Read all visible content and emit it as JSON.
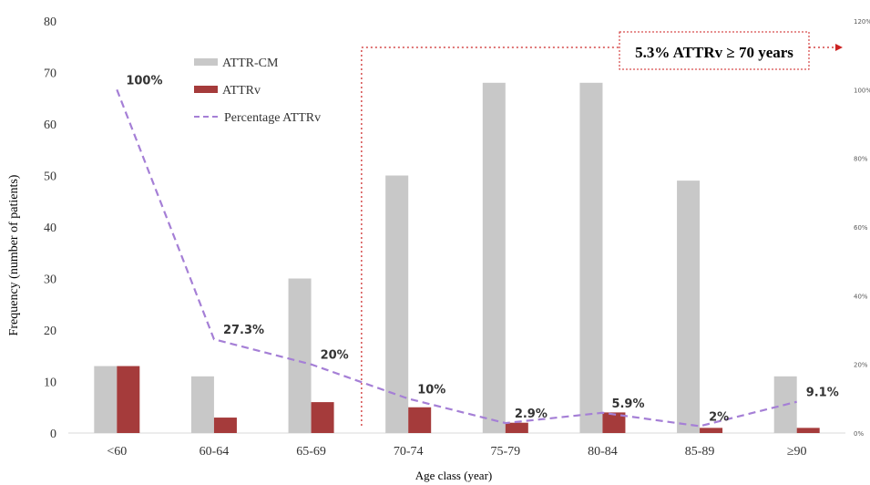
{
  "chart_data": {
    "type": "bar",
    "categories": [
      "<60",
      "60-64",
      "65-69",
      "70-74",
      "75-79",
      "80-84",
      "85-89",
      "≥90"
    ],
    "series": [
      {
        "name": "ATTR-CM",
        "type": "bar",
        "values": [
          13,
          11,
          30,
          50,
          68,
          68,
          49,
          11
        ],
        "color": "#c8c8c8"
      },
      {
        "name": "ATTRv",
        "type": "bar",
        "values": [
          13,
          3,
          6,
          5,
          2,
          4,
          1,
          1
        ],
        "color": "#a53b3b"
      },
      {
        "name": "Percentage ATTRv",
        "type": "line",
        "axis": "right",
        "style": "dashed",
        "values": [
          100,
          27.3,
          20,
          10,
          2.9,
          5.9,
          2,
          9.1
        ],
        "color": "#a57fd6"
      }
    ],
    "point_labels": [
      "100%",
      "27.3%",
      "20%",
      "10%",
      "2.9%",
      "5.9%",
      "2%",
      "9.1%"
    ],
    "xlabel": "Age class (year)",
    "ylabel": "Frequency (number of patients)",
    "ylim": [
      0,
      80
    ],
    "yticks": [
      "0",
      "10",
      "20",
      "30",
      "40",
      "50",
      "60",
      "70",
      "80"
    ],
    "y2lim": [
      0,
      120
    ],
    "y2ticks": [
      "0%",
      "20%",
      "40%",
      "60%",
      "80%",
      "100%",
      "120%"
    ],
    "legend_position": "top-left",
    "grid": false,
    "annotation": {
      "text": "5.3% ATTRv ≥ 70 years",
      "from_category": "70-74",
      "color": "#cc2222"
    }
  }
}
